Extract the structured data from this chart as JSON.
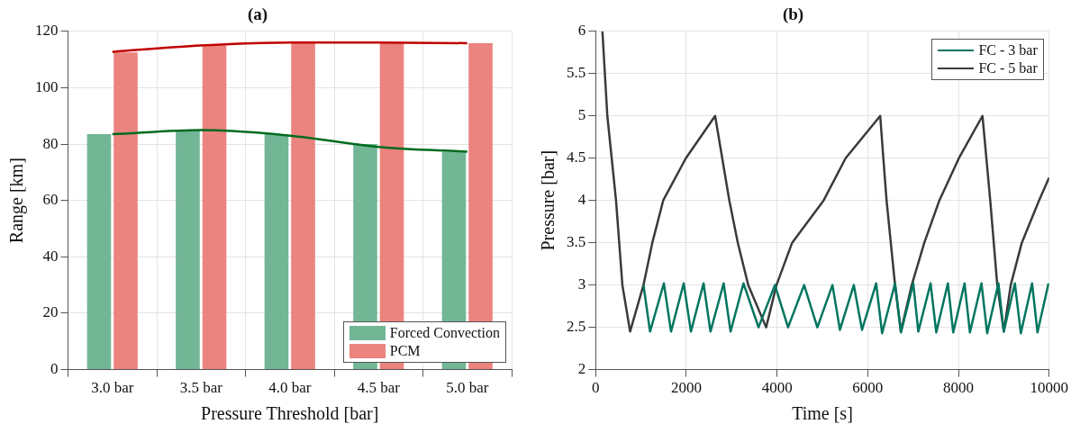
{
  "chart_data": [
    {
      "type": "bar",
      "title": "(a)",
      "xlabel": "Pressure Threshold [bar]",
      "ylabel": "Range [km]",
      "categories": [
        "3.0 bar",
        "3.5 bar",
        "4.0 bar",
        "4.5 bar",
        "5.0 bar"
      ],
      "series": [
        {
          "name": "Forced Convection",
          "color": "#72b696",
          "values": [
            83.5,
            85,
            83.5,
            80,
            77.3
          ]
        },
        {
          "name": "PCM",
          "color": "#eb837e",
          "values": [
            112.5,
            115,
            116,
            116,
            115.8
          ]
        },
        {
          "type": "line",
          "color": "#006b1e",
          "values": [
            83.5,
            85,
            83,
            79,
            77.3
          ]
        },
        {
          "type": "line",
          "color": "#c00000",
          "values": [
            112.7,
            115,
            116,
            116,
            115.8
          ]
        }
      ],
      "ylim": [
        0,
        120
      ],
      "yticks": [
        0,
        20,
        40,
        60,
        80,
        100,
        120
      ],
      "grid": true,
      "legend": "bottom right",
      "marker": "none"
    },
    {
      "type": "line",
      "title": "(b)",
      "xlabel": "Time [s]",
      "ylabel": "Pressure [bar]",
      "series": [
        {
          "name": "FC - 3 bar",
          "color": "#007560",
          "x": [
            1055,
            1200,
            1505,
            1663,
            1942,
            2101,
            2380,
            2532,
            2823,
            2975,
            3260,
            3592,
            3953,
            4243,
            4597,
            4889,
            5222,
            5387,
            5693,
            5874,
            6185,
            6316,
            6602,
            6733,
            7004,
            7115,
            7386,
            7511,
            7767,
            7885,
            8135,
            8253,
            8508,
            8633,
            8882,
            9000,
            9244,
            9375,
            9624,
            9743,
            9986
          ],
          "values": [
            3,
            2.45,
            3.02,
            2.45,
            3.02,
            2.45,
            3.02,
            2.45,
            3.02,
            2.45,
            3.02,
            2.5,
            3,
            2.5,
            3,
            2.5,
            3,
            2.47,
            3,
            2.47,
            3.02,
            2.43,
            3.02,
            2.44,
            3.02,
            2.45,
            3.02,
            2.44,
            3.02,
            2.44,
            3.02,
            2.44,
            3.02,
            2.43,
            3.02,
            2.45,
            3.02,
            2.43,
            3.02,
            2.44,
            3.02
          ]
        },
        {
          "name": "FC - 5 bar",
          "color": "#3a3a3a",
          "x": [
            150,
            258,
            450,
            590,
            760,
            1055,
            1250,
            1490,
            1990,
            2635,
            2948,
            3135,
            3365,
            3760,
            3988,
            4333,
            5027,
            5512,
            6275,
            6344,
            6415,
            6602,
            6730,
            6970,
            7247,
            7579,
            8010,
            8530,
            8701,
            8856,
            9000,
            9153,
            9397,
            9777,
            10000
          ],
          "values": [
            6,
            5,
            4,
            3,
            2.45,
            3,
            3.5,
            4,
            4.5,
            5,
            4,
            3.5,
            3,
            2.5,
            3,
            3.5,
            4,
            4.5,
            5,
            4.5,
            4,
            3,
            2.45,
            3,
            3.5,
            4,
            4.5,
            5,
            4,
            3,
            2.45,
            3,
            3.5,
            4,
            4.27
          ]
        }
      ],
      "xlim": [
        0,
        10000
      ],
      "xticks": [
        0,
        2000,
        4000,
        6000,
        8000,
        10000
      ],
      "ylim": [
        2,
        6
      ],
      "yticks": [
        2,
        2.5,
        3,
        3.5,
        4,
        4.5,
        5,
        5.5,
        6
      ],
      "grid": true,
      "legend": "top right",
      "marker": "none",
      "line_style": "solid"
    }
  ]
}
